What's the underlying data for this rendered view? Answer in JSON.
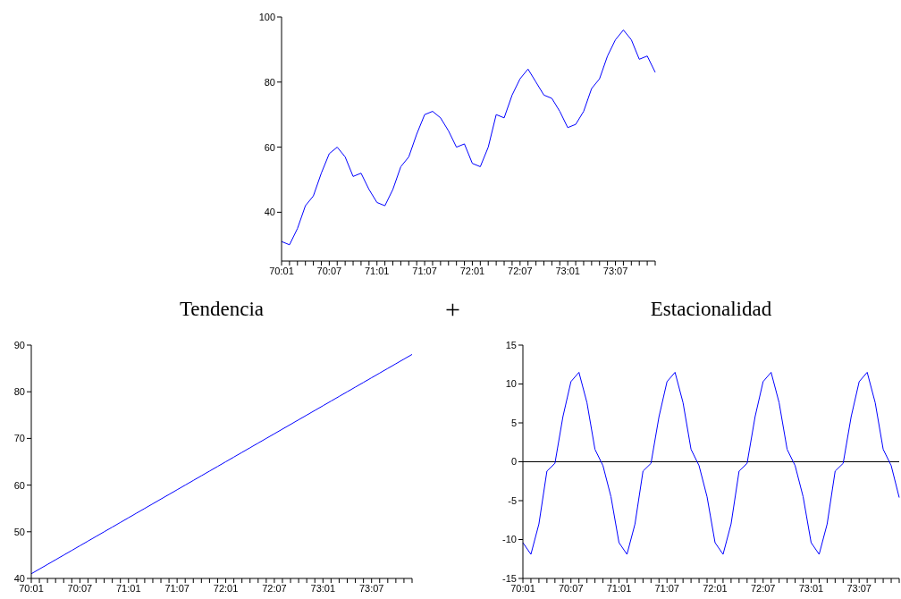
{
  "chart_data": [
    {
      "type": "line",
      "categories": [
        "70:01",
        null,
        null,
        null,
        null,
        null,
        "70:07",
        null,
        null,
        null,
        null,
        null,
        "71:01",
        null,
        null,
        null,
        null,
        null,
        "71:07",
        null,
        null,
        null,
        null,
        null,
        "72:01",
        null,
        null,
        null,
        null,
        null,
        "72:07",
        null,
        null,
        null,
        null,
        null,
        "73:01",
        null,
        null,
        null,
        null,
        null,
        "73:07",
        null,
        null,
        null,
        null,
        null
      ],
      "values": [
        31,
        30,
        35,
        42,
        45,
        52,
        58,
        60,
        57,
        51,
        52,
        47,
        43,
        42,
        47,
        54,
        57,
        64,
        70,
        71,
        69,
        65,
        60,
        61,
        55,
        54,
        60,
        70,
        69,
        76,
        81,
        84,
        80,
        76,
        75,
        71,
        66,
        67,
        71,
        78,
        81,
        88,
        93,
        96,
        93,
        87,
        88,
        83
      ],
      "color": "#0000ff",
      "ylim": [
        25,
        100
      ],
      "yticks": [
        40,
        60,
        80,
        100
      ]
    },
    {
      "type": "line",
      "title": "Tendencia",
      "annotations": [
        "+"
      ],
      "categories": [
        "70:01",
        null,
        null,
        null,
        null,
        null,
        "70:07",
        null,
        null,
        null,
        null,
        null,
        "71:01",
        null,
        null,
        null,
        null,
        null,
        "71:07",
        null,
        null,
        null,
        null,
        null,
        "72:01",
        null,
        null,
        null,
        null,
        null,
        "72:07",
        null,
        null,
        null,
        null,
        null,
        "73:01",
        null,
        null,
        null,
        null,
        null,
        "73:07",
        null,
        null,
        null,
        null,
        null
      ],
      "values": [
        41,
        42,
        43,
        44,
        45,
        46,
        47,
        48,
        49,
        50,
        51,
        52,
        53,
        54,
        55,
        56,
        57,
        58,
        59,
        60,
        61,
        62,
        63,
        64,
        65,
        66,
        67,
        68,
        69,
        70,
        71,
        72,
        73,
        74,
        75,
        76,
        77,
        78,
        79,
        80,
        81,
        82,
        83,
        84,
        85,
        86,
        87,
        88
      ],
      "color": "#0000ff",
      "ylim": [
        40,
        90
      ],
      "yticks": [
        40,
        50,
        60,
        70,
        80,
        90
      ]
    },
    {
      "type": "line",
      "title": "Estacionalidad",
      "categories": [
        "70:01",
        null,
        null,
        null,
        null,
        null,
        "70:07",
        null,
        null,
        null,
        null,
        null,
        "71:01",
        null,
        null,
        null,
        null,
        null,
        "71:07",
        null,
        null,
        null,
        null,
        null,
        "72:01",
        null,
        null,
        null,
        null,
        null,
        "72:07",
        null,
        null,
        null,
        null,
        null,
        "73:01",
        null,
        null,
        null,
        null,
        null,
        "73:07",
        null,
        null,
        null,
        null,
        null
      ],
      "values": [
        -10.4,
        -11.9,
        -8,
        -1.2,
        -0.2,
        5.8,
        10.3,
        11.5,
        7.6,
        1.6,
        -0.5,
        -4.5,
        -10.4,
        -11.9,
        -8,
        -1.2,
        -0.2,
        5.8,
        10.3,
        11.5,
        7.6,
        1.6,
        -0.5,
        -4.5,
        -10.4,
        -11.9,
        -8,
        -1.2,
        -0.2,
        5.8,
        10.3,
        11.5,
        7.6,
        1.6,
        -0.5,
        -4.5,
        -10.4,
        -11.9,
        -8,
        -1.2,
        -0.2,
        5.8,
        10.3,
        11.5,
        7.6,
        1.6,
        -0.5,
        -4.6
      ],
      "color": "#0000ff",
      "ylim": [
        -15,
        15
      ],
      "yticks": [
        -15,
        -10,
        -5,
        0,
        5,
        10,
        15
      ],
      "ref_lines": [
        {
          "axis": "y",
          "value": 0,
          "color": "#000000"
        }
      ]
    }
  ]
}
